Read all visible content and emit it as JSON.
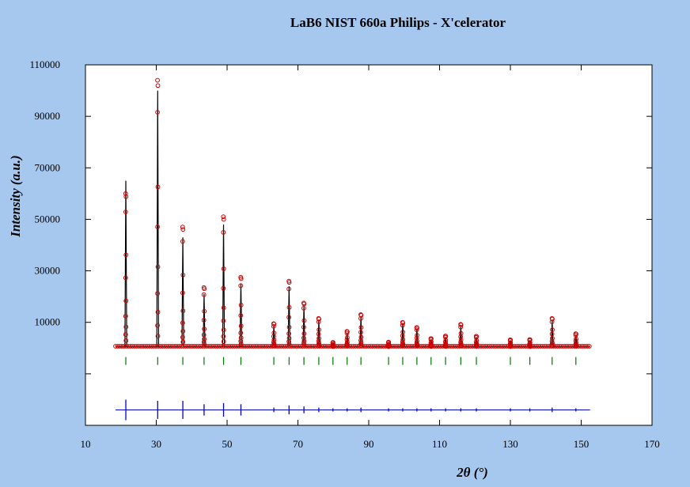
{
  "chart_data": {
    "type": "scatter",
    "title": "LaB6 NIST 660a Philips - X'celerator",
    "xlabel": "2θ (°)",
    "ylabel": "Intensity (a.u.)",
    "xlim": [
      10,
      170
    ],
    "ylim": [
      -30000,
      110000
    ],
    "xticks": [
      10,
      30,
      50,
      70,
      90,
      110,
      130,
      150,
      170
    ],
    "yticks": [
      10000,
      30000,
      50000,
      70000,
      90000,
      110000
    ],
    "yticks_unlabeled": [
      -10000,
      -30000
    ],
    "x_range": [
      18.5,
      152.5
    ],
    "background": 500,
    "peaks": [
      {
        "x": 21.4,
        "obs": 60000,
        "calc": 65000
      },
      {
        "x": 30.4,
        "obs": 104000,
        "calc": 100000
      },
      {
        "x": 37.5,
        "obs": 47000,
        "calc": 43000
      },
      {
        "x": 43.5,
        "obs": 23500,
        "calc": 21000
      },
      {
        "x": 49.0,
        "obs": 51000,
        "calc": 48000
      },
      {
        "x": 53.9,
        "obs": 27500,
        "calc": 25000
      },
      {
        "x": 63.2,
        "obs": 9500,
        "calc": 8500
      },
      {
        "x": 67.5,
        "obs": 26000,
        "calc": 24000
      },
      {
        "x": 71.7,
        "obs": 17500,
        "calc": 16000
      },
      {
        "x": 75.9,
        "obs": 11500,
        "calc": 10500
      },
      {
        "x": 79.9,
        "obs": 2200,
        "calc": 2000
      },
      {
        "x": 83.9,
        "obs": 6500,
        "calc": 6000
      },
      {
        "x": 87.8,
        "obs": 13000,
        "calc": 12000
      },
      {
        "x": 95.6,
        "obs": 2300,
        "calc": 2000
      },
      {
        "x": 99.6,
        "obs": 10000,
        "calc": 9500
      },
      {
        "x": 103.6,
        "obs": 8000,
        "calc": 7500
      },
      {
        "x": 107.6,
        "obs": 3700,
        "calc": 3400
      },
      {
        "x": 111.7,
        "obs": 4700,
        "calc": 4300
      },
      {
        "x": 116.0,
        "obs": 9200,
        "calc": 8600
      },
      {
        "x": 120.4,
        "obs": 4600,
        "calc": 4200
      },
      {
        "x": 130.0,
        "obs": 3200,
        "calc": 3000
      },
      {
        "x": 135.5,
        "obs": 3300,
        "calc": 3000
      },
      {
        "x": 141.8,
        "obs": 11500,
        "calc": 10500
      },
      {
        "x": 148.5,
        "obs": 5600,
        "calc": 5200
      }
    ],
    "reflections_y": -5000,
    "difference_y": -24000,
    "colors": {
      "observed": "#cc0000",
      "calculated": "#000000",
      "reflections": "#007700",
      "difference": "#0000cc",
      "background": "#a6c8ee",
      "plot": "#ffffff"
    }
  }
}
